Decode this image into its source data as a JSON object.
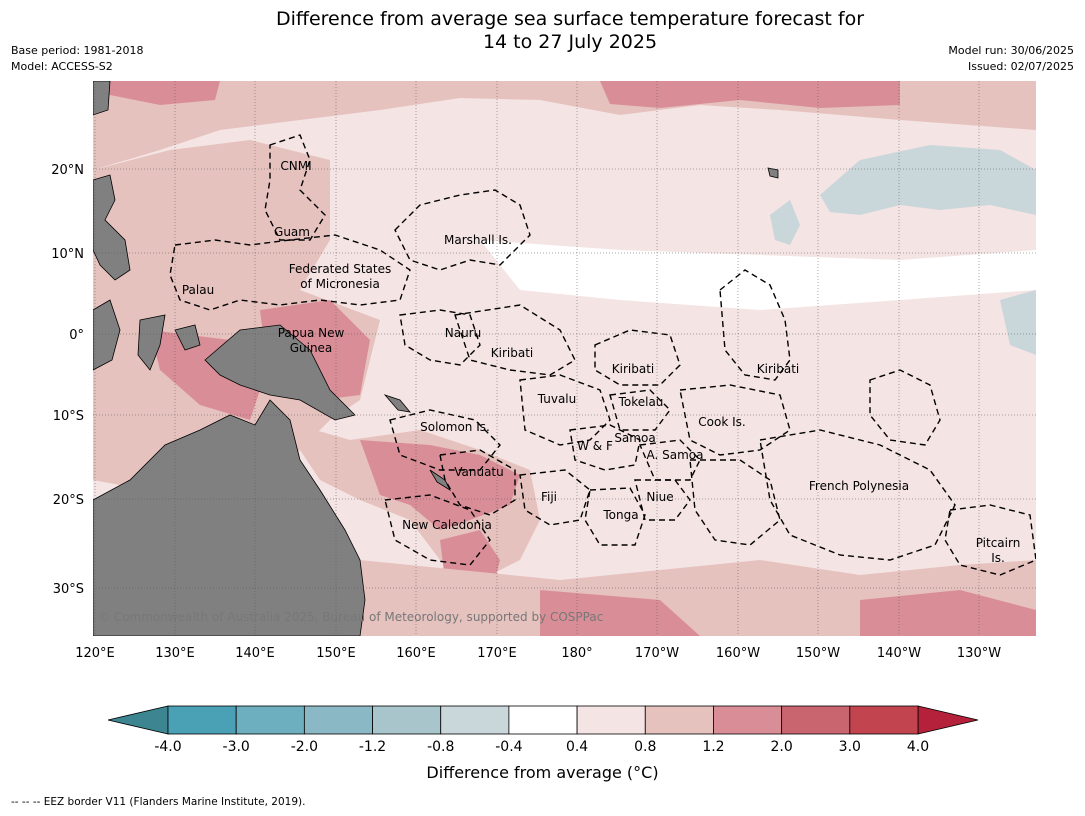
{
  "title_line1": "Difference from average sea surface temperature forecast for",
  "title_line2": "14 to 27 July 2025",
  "base_period": "Base period: 1981-2018",
  "model": "Model: ACCESS-S2",
  "model_run": "Model run: 30/06/2025",
  "issued": "Issued: 02/07/2025",
  "copyright": "© Commonwealth of Australia 2025, Bureau of Meteorology, supported by COSPPac",
  "footer_note": "-- -- -- EEZ border V11 (Flanders Marine Institute, 2019).",
  "colorbar": {
    "label": "Difference from average (°C)",
    "ticks": [
      "-4.0",
      "-3.0",
      "-2.0",
      "-1.2",
      "-0.8",
      "-0.4",
      "0.4",
      "0.8",
      "1.2",
      "2.0",
      "3.0",
      "4.0"
    ],
    "colors": [
      "#4aa0b5",
      "#6eafbf",
      "#8ab8c4",
      "#a8c5cb",
      "#c9d6da",
      "#ffffff",
      "#f4e4e3",
      "#e6c2bf",
      "#d98e97",
      "#c9656f",
      "#c1444f"
    ],
    "under_color": "#3d8590",
    "over_color": "#b5213a"
  },
  "map": {
    "lat_labels": [
      "20°N",
      "10°N",
      "0°",
      "10°S",
      "20°S",
      "30°S"
    ],
    "lon_labels": [
      "120°E",
      "130°E",
      "140°E",
      "150°E",
      "160°E",
      "170°E",
      "180°",
      "170°W",
      "160°W",
      "150°W",
      "140°W",
      "130°W"
    ],
    "land_color": "#808080",
    "regions": [
      {
        "name": "CNMI"
      },
      {
        "name": "Guam"
      },
      {
        "name": "Marshall Is."
      },
      {
        "name": "Federated States"
      },
      {
        "name": "of Micronesia"
      },
      {
        "name": "Palau"
      },
      {
        "name": "Papua New"
      },
      {
        "name": "Guinea"
      },
      {
        "name": "Nauru"
      },
      {
        "name": "Kiribati"
      },
      {
        "name": "Kiribati"
      },
      {
        "name": "Kiribati"
      },
      {
        "name": "Tuvalu"
      },
      {
        "name": "Tokelau"
      },
      {
        "name": "Cook Is."
      },
      {
        "name": "Solomon Is."
      },
      {
        "name": "Samoa"
      },
      {
        "name": "W & F"
      },
      {
        "name": "A. Samoa"
      },
      {
        "name": "Vanuatu"
      },
      {
        "name": "Fiji"
      },
      {
        "name": "Niue"
      },
      {
        "name": "French Polynesia"
      },
      {
        "name": "Tonga"
      },
      {
        "name": "New Caledonia"
      },
      {
        "name": "Pitcairn"
      },
      {
        "name": "Is."
      }
    ]
  }
}
